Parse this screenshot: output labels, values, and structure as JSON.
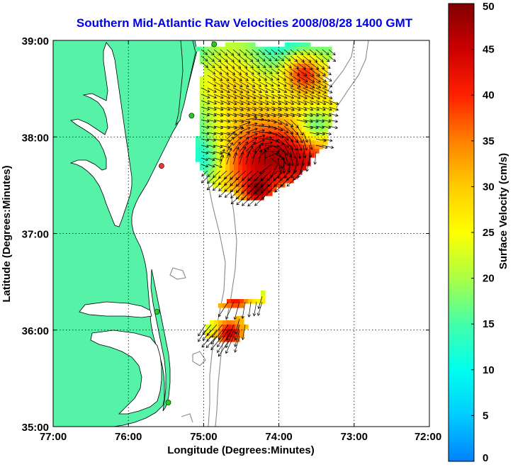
{
  "map": {
    "title": "Southern Mid-Atlantic Raw Velocities 2008/08/28 1400 GMT",
    "title_color": "#0000ee",
    "xlabel": "Longitude (Degrees:Minutes)",
    "ylabel": "Latitude (Degrees:Minutes)",
    "x_range": [
      -77,
      -72
    ],
    "y_range": [
      35,
      39
    ],
    "x_ticks": [
      {
        "value": -77,
        "label": "77:00"
      },
      {
        "value": -76,
        "label": "76:00"
      },
      {
        "value": -75,
        "label": "75:00"
      },
      {
        "value": -74,
        "label": "74:00"
      },
      {
        "value": -73,
        "label": "73:00"
      },
      {
        "value": -72,
        "label": "72:00"
      }
    ],
    "y_ticks": [
      {
        "value": 35,
        "label": "35:00"
      },
      {
        "value": 36,
        "label": "36:00"
      },
      {
        "value": 37,
        "label": "37:00"
      },
      {
        "value": 38,
        "label": "38:00"
      },
      {
        "value": 39,
        "label": "39:00"
      }
    ],
    "colors": {
      "land": "#55f2a8",
      "ocean": "#ffffff",
      "coast": "#000000",
      "isobath": "#8a8a8a",
      "grid": "#000000"
    },
    "stations": [
      {
        "lon": -74.86,
        "lat": 38.96,
        "color": "#22cc22"
      },
      {
        "lon": -75.16,
        "lat": 38.22,
        "color": "#22cc22"
      },
      {
        "lon": -75.56,
        "lat": 37.7,
        "color": "#ee3333"
      },
      {
        "lon": -75.62,
        "lat": 36.19,
        "color": "#22cc22"
      },
      {
        "lon": -75.47,
        "lat": 35.25,
        "color": "#22cc22"
      }
    ]
  },
  "colorbar": {
    "label": "Surface Velocity (cm/s)",
    "min": 0,
    "max": 50,
    "ticks": [
      {
        "value": 0,
        "label": "0"
      },
      {
        "value": 5,
        "label": "5"
      },
      {
        "value": 10,
        "label": "10"
      },
      {
        "value": 15,
        "label": "15"
      },
      {
        "value": 20,
        "label": "20"
      },
      {
        "value": 25,
        "label": "25"
      },
      {
        "value": 30,
        "label": "30"
      },
      {
        "value": 35,
        "label": "35"
      },
      {
        "value": 40,
        "label": "40"
      },
      {
        "value": 45,
        "label": "45"
      },
      {
        "value": 50,
        "label": "50"
      }
    ],
    "colormap": [
      "#0080ff",
      "#00ccff",
      "#00ffee",
      "#44ffaa",
      "#aaff44",
      "#ffff00",
      "#ffcc00",
      "#ff8000",
      "#ff2000",
      "#cc0000",
      "#800000"
    ]
  }
}
